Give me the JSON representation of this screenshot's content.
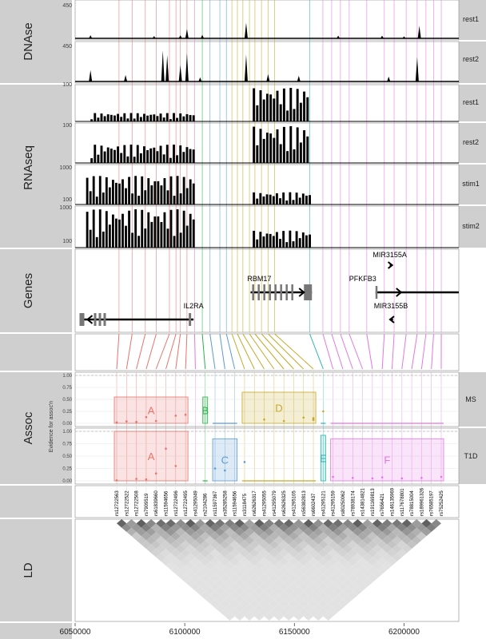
{
  "colors": {
    "A": "#e8736c",
    "B": "#2bb04a",
    "C": "#5b9bd5",
    "D": "#c7a82a",
    "E": "#26b5b0",
    "F": "#e476e4",
    "strip": "#cfcfcf",
    "panel_bg": "#ffffff",
    "track": "#000000"
  },
  "panels": {
    "dnase": "DNAse",
    "rnaseq": "RNAseq",
    "genes": "Genes",
    "assoc": "Assoc",
    "ld": "LD"
  },
  "tracks": {
    "dnase_rest1": {
      "label": "rest1",
      "ytick": "450"
    },
    "dnase_rest2": {
      "label": "rest2",
      "ytick": "450"
    },
    "rna_rest1": {
      "label": "rest1",
      "ytick": "100"
    },
    "rna_rest2": {
      "label": "rest2",
      "ytick": "100"
    },
    "rna_stim1": {
      "label": "stim1",
      "ytick_top": "1000",
      "ytick_bottom": "100"
    },
    "rna_stim2": {
      "label": "stim2",
      "ytick_top": "1000",
      "ytick_bottom": "100"
    }
  },
  "assoc": {
    "ylabel": "Evidence for assoc'n",
    "yticks": [
      "1.00",
      "0.75",
      "0.50",
      "0.25",
      "0.00"
    ],
    "ms_label": "MS",
    "t1d_label": "T1D"
  },
  "chart_data": {
    "type": "genome-browser",
    "x_axis": {
      "ticks": [
        "6050000",
        "6100000",
        "6150000",
        "6200000"
      ],
      "xlim": [
        6050000,
        6225000
      ]
    },
    "genes": [
      {
        "name": "IL2RA",
        "start": 6052000,
        "end": 6104000,
        "strand": "-"
      },
      {
        "name": "RBM17",
        "start": 6130000,
        "end": 6158000,
        "strand": "+"
      },
      {
        "name": "PFKFB3",
        "start": 6187000,
        "end": 6225000,
        "strand": "+"
      },
      {
        "name": "MIR3155A",
        "start": 6193500,
        "end": 6194500,
        "strand": "+"
      },
      {
        "name": "MIR3155B",
        "start": 6194000,
        "end": 6195000,
        "strand": "-"
      }
    ],
    "snps": [
      "rs12722563",
      "rs12722522",
      "rs12722508",
      "rs7909519",
      "rs61839660",
      "rs11594656",
      "rs12722496",
      "rs12722495",
      "rs41295049",
      "rs2104286",
      "rs11597367",
      "rs35285258",
      "rs11594656",
      "rs3118475",
      "rs62626317",
      "rs41295055",
      "rs41295079",
      "rs62626325",
      "rs41295105",
      "rs56382813",
      "rs6602437",
      "rs41295121",
      "rs41295159",
      "rs80250062",
      "rs78938174",
      "rs143814821",
      "rs191169813",
      "rs7656421",
      "rs146135969",
      "rs117678801",
      "rs78815004",
      "rs189961326",
      "rs76585197",
      "rs75252425"
    ],
    "snp_positions": [
      6070000,
      6076000,
      6082000,
      6087000,
      6093000,
      6096000,
      6098000,
      6101000,
      6104500,
      6108000,
      6111500,
      6116000,
      6119000,
      6121500,
      6124000,
      6126500,
      6129500,
      6132000,
      6135000,
      6138000,
      6141000,
      6157000,
      6163000,
      6167000,
      6171000,
      6175000,
      6183000,
      6191000,
      6195500,
      6201000,
      6206000,
      6210000,
      6213500,
      6217000
    ],
    "groups": [
      {
        "name": "A",
        "start": 6069000,
        "end": 6104000
      },
      {
        "name": "B",
        "start": 6106000,
        "end": 6109000
      },
      {
        "name": "C",
        "start": 6110000,
        "end": 6121000
      },
      {
        "name": "D",
        "start": 6120000,
        "end": 6153000
      },
      {
        "name": "E",
        "start": 6156000,
        "end": 6159000
      },
      {
        "name": "F",
        "start": 6161000,
        "end": 6218000
      }
    ],
    "ms": {
      "points": [
        [
          6070000,
          0.02
        ],
        [
          6076000,
          0.04
        ],
        [
          6082000,
          0.03
        ],
        [
          6087000,
          0.13
        ],
        [
          6093000,
          0.05
        ],
        [
          6098000,
          0.16
        ],
        [
          6101000,
          0.18
        ],
        [
          6127000,
          0.08
        ],
        [
          6131000,
          0.05
        ],
        [
          6137000,
          0.12
        ],
        [
          6141000,
          0.11
        ],
        [
          6145000,
          0.07
        ],
        [
          6149000,
          0.09
        ],
        [
          6153000,
          0.25
        ]
      ],
      "boxes": [
        {
          "group": "A",
          "start": 6069000,
          "end": 6104000,
          "height": 0.55
        },
        {
          "group": "B",
          "start": 6106000,
          "end": 6109000,
          "height": 0.55
        },
        {
          "group": "D",
          "start": 6121000,
          "end": 6153000,
          "height": 0.65
        }
      ],
      "flat_groups": [
        "C",
        "E",
        "F"
      ]
    },
    "t1d": {
      "points": [
        [
          6070000,
          0.01
        ],
        [
          6080000,
          0.04
        ],
        [
          6087000,
          0.03
        ],
        [
          6093000,
          0.15
        ],
        [
          6096000,
          0.65
        ],
        [
          6098000,
          0.3
        ],
        [
          6111500,
          0.25
        ],
        [
          6116000,
          0.21
        ],
        [
          6121000,
          0.38
        ],
        [
          6163000,
          0.08
        ],
        [
          6171000,
          0.06
        ],
        [
          6180000,
          0.05
        ],
        [
          6190000,
          0.07
        ],
        [
          6200000,
          0.05
        ],
        [
          6209000,
          0.06
        ],
        [
          6216000,
          0.08
        ]
      ],
      "boxes": [
        {
          "group": "A",
          "start": 6069000,
          "end": 6104000,
          "height": 1.0
        },
        {
          "group": "C",
          "start": 6110000,
          "end": 6121000,
          "height": 0.85
        },
        {
          "group": "E",
          "start": 6156000,
          "end": 6159000,
          "height": 0.92
        },
        {
          "group": "F",
          "start": 6161000,
          "end": 6218000,
          "height": 0.85
        }
      ],
      "flat_groups": [
        "B",
        "D"
      ]
    },
    "dnase": {
      "rest1_ylim": [
        0,
        450
      ],
      "rest2_ylim": [
        0,
        450
      ],
      "rest1_peaks": [
        [
          6057000,
          40
        ],
        [
          6086000,
          30
        ],
        [
          6098000,
          40
        ],
        [
          6101000,
          120
        ],
        [
          6108000,
          45
        ],
        [
          6128000,
          200
        ],
        [
          6170000,
          35
        ],
        [
          6190000,
          35
        ],
        [
          6200000,
          25
        ],
        [
          6207000,
          160
        ]
      ],
      "rest2_peaks": [
        [
          6057000,
          140
        ],
        [
          6073000,
          80
        ],
        [
          6090000,
          380
        ],
        [
          6092000,
          320
        ],
        [
          6098000,
          200
        ],
        [
          6101000,
          350
        ],
        [
          6107000,
          50
        ],
        [
          6128000,
          330
        ],
        [
          6138000,
          90
        ],
        [
          6152000,
          70
        ],
        [
          6193000,
          60
        ],
        [
          6206000,
          300
        ]
      ]
    },
    "rnaseq": {
      "rest1_ylim": [
        0,
        100
      ],
      "rest2_ylim": [
        0,
        100
      ],
      "stim1_ylim": [
        100,
        1000
      ],
      "stim2_ylim": [
        100,
        1000
      ],
      "rest1_blocks": [
        [
          6057000,
          6105000,
          25
        ],
        [
          6131000,
          6157000,
          100
        ]
      ],
      "rest2_blocks": [
        [
          6057000,
          6105000,
          50
        ],
        [
          6131000,
          6157000,
          100
        ]
      ],
      "stim1_blocks": [
        [
          6055000,
          6105000,
          800
        ],
        [
          6131000,
          6158000,
          400
        ]
      ],
      "stim2_blocks": [
        [
          6055000,
          6105000,
          1000
        ],
        [
          6131000,
          6158000,
          500
        ]
      ]
    },
    "ld": {
      "type": "heatmap",
      "pairs": 34
    }
  }
}
